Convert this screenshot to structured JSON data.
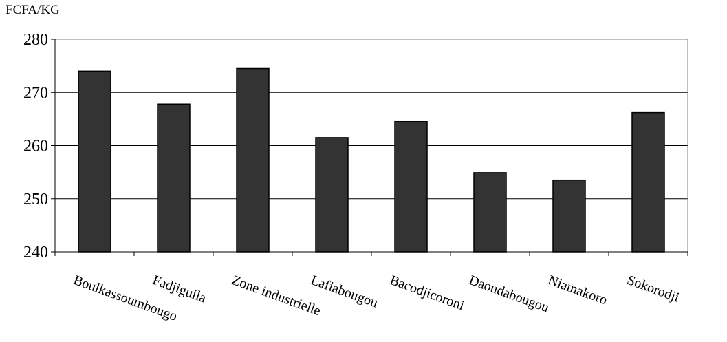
{
  "chart_data": {
    "type": "bar",
    "title": "",
    "ylabel": "FCFA/KG",
    "xlabel": "",
    "categories": [
      "Boulkassoumbougo",
      "Fadjiguila",
      "Zone industrielle",
      "Lafiabougou",
      "Bacodjicoroni",
      "Daoudabougou",
      "Niamakoro",
      "Sokorodji"
    ],
    "values": [
      274,
      267.8,
      274.5,
      261.5,
      264.5,
      254.9,
      253.5,
      266.2
    ],
    "ylim": [
      240,
      280
    ],
    "yticks": [
      "240",
      "250",
      "260",
      "270",
      "280"
    ],
    "grid": "horizontal",
    "legend": "none",
    "colors": {
      "bar": "#333333",
      "bar_stroke": "#000000",
      "grid": "#000000",
      "frame": "#808080"
    }
  }
}
